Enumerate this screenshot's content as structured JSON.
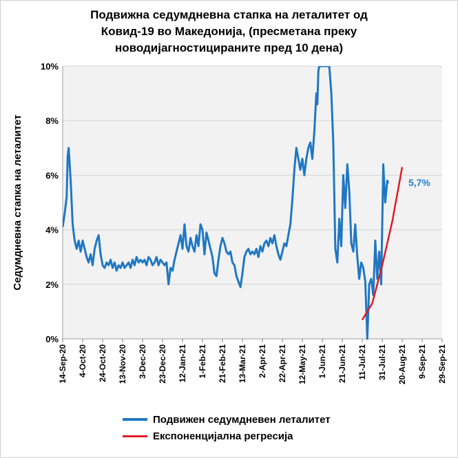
{
  "title_lines": [
    "Подвижна седумдневна стапка на леталитет од",
    "Ковид-19 во Македонија, (пресметана преку",
    "новодијагностицираните пред 10 дена)"
  ],
  "colors": {
    "series": "#1f77c4",
    "regression": "#e01b24",
    "annotation": "#2a7fd0",
    "plot_bg": "#f2f2f2",
    "grid": "#d4d4d4"
  },
  "chart_data": {
    "type": "line",
    "ylabel": "Седумдневна стапка на леталитет",
    "ylim": [
      0,
      10
    ],
    "y_unit": "%",
    "y_ticks": [
      "0%",
      "2%",
      "4%",
      "6%",
      "8%",
      "10%"
    ],
    "xlim": [
      "2020-09-14",
      "2021-09-29"
    ],
    "x_tick_dates": [
      "2020-09-14",
      "2020-10-04",
      "2020-10-24",
      "2020-11-13",
      "2020-12-03",
      "2020-12-23",
      "2021-01-12",
      "2021-02-01",
      "2021-02-21",
      "2021-03-13",
      "2021-04-02",
      "2021-04-22",
      "2021-05-12",
      "2021-06-01",
      "2021-06-21",
      "2021-07-11",
      "2021-07-31",
      "2021-08-20",
      "2021-09-09",
      "2021-09-29"
    ],
    "x_tick_labels": [
      "14-Sep-20",
      "4-Oct-20",
      "24-Oct-20",
      "13-Nov-20",
      "3-Dec-20",
      "23-Dec-20",
      "12-Jan-21",
      "1-Feb-21",
      "21-Feb-21",
      "13-Mar-21",
      "2-Apr-21",
      "22-Apr-21",
      "12-May-21",
      "1-Jun-21",
      "21-Jun-21",
      "11-Jul-21",
      "31-Jul-21",
      "20-Aug-21",
      "9-Sep-21",
      "29-Sep-21"
    ],
    "grid": true,
    "legend_position": "bottom",
    "series": [
      {
        "name": "Подвижен седумдневен леталитет",
        "points": [
          [
            "2020-09-14",
            4.1
          ],
          [
            "2020-09-16",
            4.6
          ],
          [
            "2020-09-18",
            5.2
          ],
          [
            "2020-09-19",
            6.7
          ],
          [
            "2020-09-20",
            7.0
          ],
          [
            "2020-09-22",
            5.8
          ],
          [
            "2020-09-24",
            4.2
          ],
          [
            "2020-09-26",
            3.6
          ],
          [
            "2020-09-28",
            3.3
          ],
          [
            "2020-09-30",
            3.6
          ],
          [
            "2020-10-02",
            3.2
          ],
          [
            "2020-10-04",
            3.6
          ],
          [
            "2020-10-06",
            3.3
          ],
          [
            "2020-10-08",
            3.0
          ],
          [
            "2020-10-10",
            2.8
          ],
          [
            "2020-10-12",
            3.1
          ],
          [
            "2020-10-14",
            2.7
          ],
          [
            "2020-10-16",
            3.3
          ],
          [
            "2020-10-18",
            3.6
          ],
          [
            "2020-10-20",
            3.8
          ],
          [
            "2020-10-22",
            3.1
          ],
          [
            "2020-10-24",
            2.7
          ],
          [
            "2020-10-26",
            2.6
          ],
          [
            "2020-10-28",
            2.8
          ],
          [
            "2020-10-30",
            2.7
          ],
          [
            "2020-11-01",
            2.9
          ],
          [
            "2020-11-03",
            2.6
          ],
          [
            "2020-11-05",
            2.8
          ],
          [
            "2020-11-07",
            2.5
          ],
          [
            "2020-11-09",
            2.7
          ],
          [
            "2020-11-11",
            2.6
          ],
          [
            "2020-11-13",
            2.8
          ],
          [
            "2020-11-15",
            2.6
          ],
          [
            "2020-11-17",
            2.7
          ],
          [
            "2020-11-19",
            2.8
          ],
          [
            "2020-11-21",
            2.6
          ],
          [
            "2020-11-23",
            2.9
          ],
          [
            "2020-11-25",
            2.7
          ],
          [
            "2020-11-27",
            3.0
          ],
          [
            "2020-11-29",
            2.8
          ],
          [
            "2020-12-01",
            2.9
          ],
          [
            "2020-12-03",
            2.8
          ],
          [
            "2020-12-05",
            2.9
          ],
          [
            "2020-12-07",
            2.7
          ],
          [
            "2020-12-09",
            3.0
          ],
          [
            "2020-12-11",
            2.9
          ],
          [
            "2020-12-13",
            2.7
          ],
          [
            "2020-12-15",
            2.8
          ],
          [
            "2020-12-17",
            3.0
          ],
          [
            "2020-12-19",
            2.7
          ],
          [
            "2020-12-21",
            2.9
          ],
          [
            "2020-12-23",
            2.8
          ],
          [
            "2020-12-25",
            2.7
          ],
          [
            "2020-12-27",
            2.8
          ],
          [
            "2020-12-29",
            2.0
          ],
          [
            "2020-12-31",
            2.6
          ],
          [
            "2021-01-02",
            2.5
          ],
          [
            "2021-01-04",
            2.9
          ],
          [
            "2021-01-06",
            3.2
          ],
          [
            "2021-01-08",
            3.5
          ],
          [
            "2021-01-10",
            3.8
          ],
          [
            "2021-01-12",
            3.3
          ],
          [
            "2021-01-14",
            4.2
          ],
          [
            "2021-01-16",
            3.4
          ],
          [
            "2021-01-18",
            3.2
          ],
          [
            "2021-01-20",
            3.7
          ],
          [
            "2021-01-22",
            3.4
          ],
          [
            "2021-01-24",
            3.2
          ],
          [
            "2021-01-26",
            3.8
          ],
          [
            "2021-01-28",
            3.4
          ],
          [
            "2021-01-30",
            4.2
          ],
          [
            "2021-02-01",
            4.0
          ],
          [
            "2021-02-03",
            3.1
          ],
          [
            "2021-02-05",
            3.9
          ],
          [
            "2021-02-07",
            3.6
          ],
          [
            "2021-02-09",
            3.3
          ],
          [
            "2021-02-11",
            3.0
          ],
          [
            "2021-02-13",
            2.4
          ],
          [
            "2021-02-15",
            2.3
          ],
          [
            "2021-02-17",
            2.9
          ],
          [
            "2021-02-19",
            3.4
          ],
          [
            "2021-02-21",
            3.7
          ],
          [
            "2021-02-23",
            3.5
          ],
          [
            "2021-02-25",
            3.2
          ],
          [
            "2021-02-27",
            3.1
          ],
          [
            "2021-03-01",
            3.2
          ],
          [
            "2021-03-03",
            2.8
          ],
          [
            "2021-03-05",
            2.7
          ],
          [
            "2021-03-07",
            2.3
          ],
          [
            "2021-03-09",
            2.1
          ],
          [
            "2021-03-11",
            1.9
          ],
          [
            "2021-03-13",
            2.4
          ],
          [
            "2021-03-15",
            3.0
          ],
          [
            "2021-03-17",
            3.2
          ],
          [
            "2021-03-19",
            3.3
          ],
          [
            "2021-03-21",
            3.1
          ],
          [
            "2021-03-23",
            3.2
          ],
          [
            "2021-03-25",
            3.1
          ],
          [
            "2021-03-27",
            3.3
          ],
          [
            "2021-03-29",
            3.0
          ],
          [
            "2021-03-31",
            3.4
          ],
          [
            "2021-04-02",
            3.2
          ],
          [
            "2021-04-04",
            3.5
          ],
          [
            "2021-04-06",
            3.6
          ],
          [
            "2021-04-08",
            3.4
          ],
          [
            "2021-04-10",
            3.7
          ],
          [
            "2021-04-12",
            3.5
          ],
          [
            "2021-04-14",
            3.8
          ],
          [
            "2021-04-16",
            3.4
          ],
          [
            "2021-04-18",
            3.1
          ],
          [
            "2021-04-20",
            2.9
          ],
          [
            "2021-04-22",
            3.2
          ],
          [
            "2021-04-24",
            3.5
          ],
          [
            "2021-04-26",
            3.4
          ],
          [
            "2021-04-28",
            3.8
          ],
          [
            "2021-04-30",
            4.2
          ],
          [
            "2021-05-02",
            5.1
          ],
          [
            "2021-05-04",
            6.2
          ],
          [
            "2021-05-06",
            7.0
          ],
          [
            "2021-05-08",
            6.6
          ],
          [
            "2021-05-10",
            6.2
          ],
          [
            "2021-05-12",
            6.6
          ],
          [
            "2021-05-14",
            6.0
          ],
          [
            "2021-05-16",
            6.6
          ],
          [
            "2021-05-18",
            7.0
          ],
          [
            "2021-05-20",
            7.2
          ],
          [
            "2021-05-22",
            6.6
          ],
          [
            "2021-05-24",
            7.6
          ],
          [
            "2021-05-26",
            9.0
          ],
          [
            "2021-05-27",
            8.6
          ],
          [
            "2021-05-28",
            9.8
          ],
          [
            "2021-05-29",
            10.0
          ],
          [
            "2021-06-08",
            10.0
          ],
          [
            "2021-06-10",
            9.0
          ],
          [
            "2021-06-12",
            7.2
          ],
          [
            "2021-06-14",
            3.3
          ],
          [
            "2021-06-16",
            2.8
          ],
          [
            "2021-06-18",
            4.4
          ],
          [
            "2021-06-20",
            3.4
          ],
          [
            "2021-06-22",
            6.0
          ],
          [
            "2021-06-24",
            4.8
          ],
          [
            "2021-06-26",
            6.4
          ],
          [
            "2021-06-28",
            5.4
          ],
          [
            "2021-06-30",
            3.5
          ],
          [
            "2021-07-02",
            3.2
          ],
          [
            "2021-07-04",
            4.2
          ],
          [
            "2021-07-06",
            3.0
          ],
          [
            "2021-07-08",
            2.2
          ],
          [
            "2021-07-10",
            2.8
          ],
          [
            "2021-07-12",
            2.6
          ],
          [
            "2021-07-14",
            2.1
          ],
          [
            "2021-07-16",
            0.0
          ],
          [
            "2021-07-18",
            2.0
          ],
          [
            "2021-07-20",
            2.2
          ],
          [
            "2021-07-22",
            1.6
          ],
          [
            "2021-07-24",
            3.6
          ],
          [
            "2021-07-26",
            2.2
          ],
          [
            "2021-07-28",
            3.2
          ],
          [
            "2021-07-30",
            2.0
          ],
          [
            "2021-08-01",
            6.4
          ],
          [
            "2021-08-03",
            5.0
          ],
          [
            "2021-08-05",
            5.8
          ],
          [
            "2021-08-06",
            5.7
          ]
        ]
      },
      {
        "name": "Експоненцијална регресија",
        "points": [
          [
            "2021-07-11",
            0.7
          ],
          [
            "2021-07-21",
            1.3
          ],
          [
            "2021-07-31",
            2.7
          ],
          [
            "2021-08-10",
            4.3
          ],
          [
            "2021-08-20",
            6.3
          ]
        ]
      }
    ],
    "annotations": [
      {
        "text": "5,7%",
        "at": [
          "2021-08-11",
          5.6
        ]
      }
    ]
  }
}
